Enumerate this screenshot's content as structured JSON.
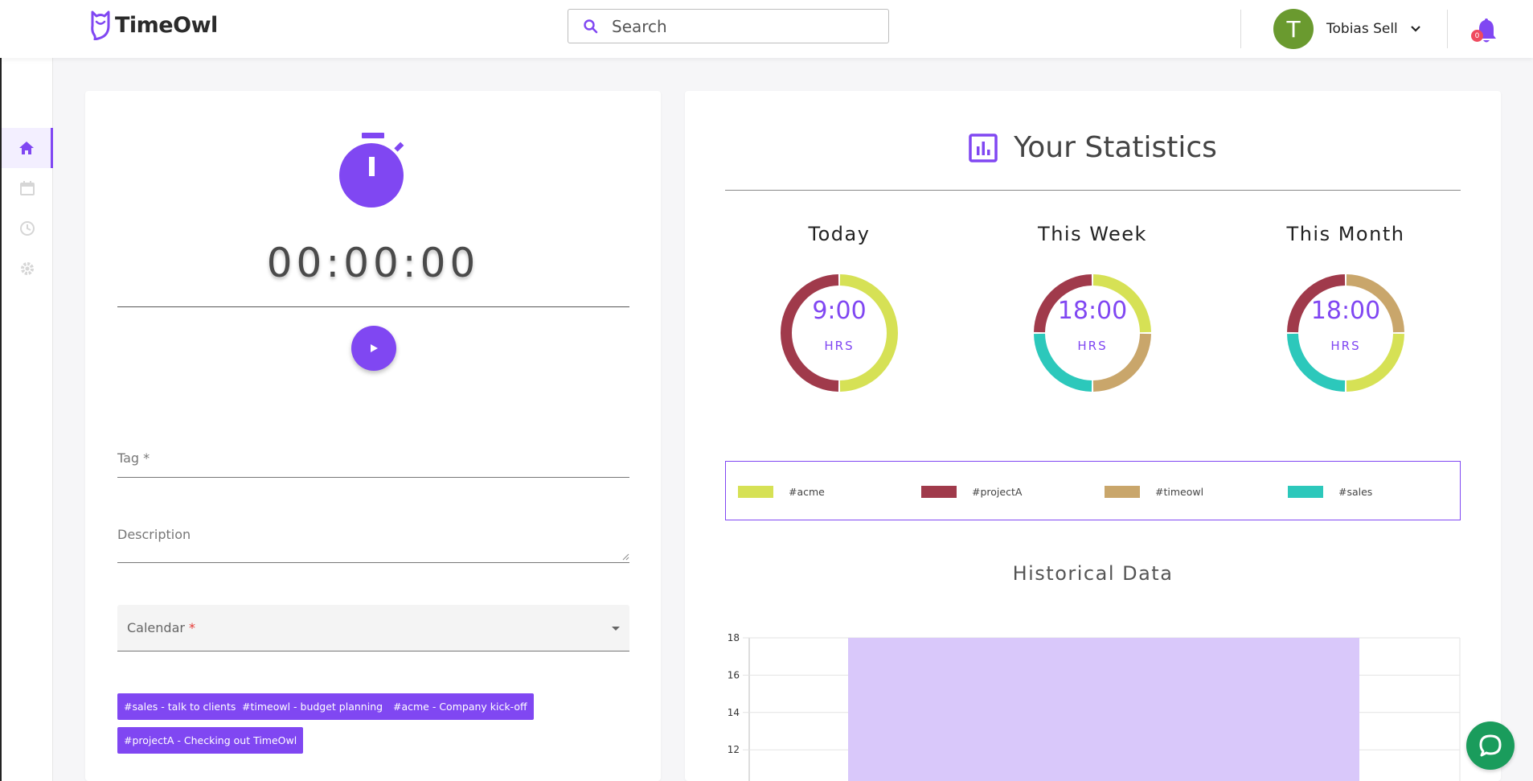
{
  "app": {
    "name": "TimeOwl"
  },
  "search": {
    "placeholder": "Search"
  },
  "user": {
    "initial": "T",
    "name": "Tobias Sell",
    "notifications": "0"
  },
  "sidebar": {
    "items": [
      {
        "name": "home",
        "icon": "home-icon",
        "active": true
      },
      {
        "name": "calendar",
        "icon": "calendar-icon",
        "active": false
      },
      {
        "name": "history",
        "icon": "history-icon",
        "active": false
      },
      {
        "name": "settings",
        "icon": "gear-icon",
        "active": false
      }
    ]
  },
  "timer": {
    "display": "00:00:00"
  },
  "form": {
    "tag_label": "Tag *",
    "description_label": "Description",
    "calendar_label": "Calendar",
    "calendar_required": "*"
  },
  "chips": [
    "#sales - talk to clients",
    "#timeowl - budget planning",
    "#acme - Company kick-off",
    "#projectA - Checking out TimeOwl"
  ],
  "stats": {
    "title": "Your Statistics",
    "periods": [
      {
        "label": "Today",
        "value": "9:00",
        "unit": "HRS"
      },
      {
        "label": "This Week",
        "value": "18:00",
        "unit": "HRS"
      },
      {
        "label": "This Month",
        "value": "18:00",
        "unit": "HRS"
      }
    ],
    "legend": [
      {
        "label": "#acme",
        "color": "#d6e155"
      },
      {
        "label": "#projectA",
        "color": "#a03a4b"
      },
      {
        "label": "#timeowl",
        "color": "#c9a66b"
      },
      {
        "label": "#sales",
        "color": "#2cc8bb"
      }
    ],
    "historical_title": "Historical Data"
  },
  "chart_data": [
    {
      "type": "pie",
      "title": "Today",
      "labels": [
        "#acme",
        "#projectA"
      ],
      "values": [
        4.5,
        4.5
      ],
      "center_text": "9:00 HRS"
    },
    {
      "type": "pie",
      "title": "This Week",
      "labels": [
        "#acme",
        "#timeowl",
        "#sales",
        "#projectA"
      ],
      "values": [
        4.5,
        4.5,
        4.5,
        4.5
      ],
      "center_text": "18:00 HRS"
    },
    {
      "type": "pie",
      "title": "This Month",
      "labels": [
        "#timeowl",
        "#acme",
        "#sales",
        "#projectA"
      ],
      "values": [
        4.5,
        4.5,
        4.5,
        4.5
      ],
      "center_text": "18:00 HRS"
    },
    {
      "type": "bar",
      "title": "Historical Data",
      "categories": [
        ""
      ],
      "values": [
        18
      ],
      "yticks": [
        18,
        16,
        14,
        12
      ],
      "ylim_visible": [
        10.8,
        18
      ],
      "color": "#d9c8fa"
    }
  ]
}
